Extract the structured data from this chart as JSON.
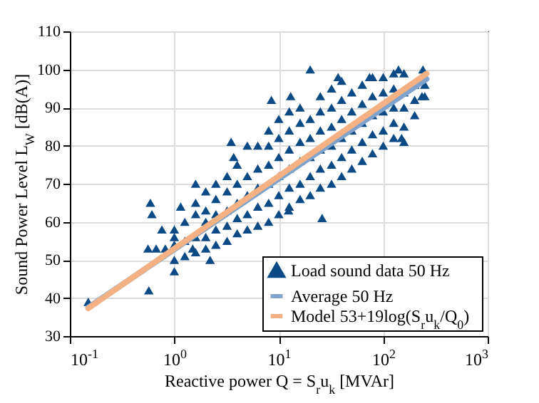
{
  "chart_data": {
    "type": "scatter",
    "xlabel": "Reactive power Q = S$_{r}$u$_{k}$ [MVAr]",
    "ylabel": "Sound Power Level L$_{W}$ [dB(A)]",
    "log": "x",
    "grid": true,
    "legend": "bottom right",
    "xlim": [
      0.1,
      1000
    ],
    "ylim": [
      30,
      110
    ],
    "xticks": [
      {
        "value": 0.1,
        "label": "10$^{-1}$"
      },
      {
        "value": 1,
        "label": "10$^{0}$"
      },
      {
        "value": 10,
        "label": "10$^{1}$"
      },
      {
        "value": 100,
        "label": "10$^{2}$"
      },
      {
        "value": 1000,
        "label": "10$^{3}$"
      }
    ],
    "yticks": [
      30,
      40,
      50,
      60,
      70,
      80,
      90,
      100,
      110
    ],
    "series": [
      {
        "name": "Load sound data 50 Hz",
        "marker": "triangle",
        "color": "#0b4a85",
        "x": [
          0.15,
          0.59,
          0.61,
          0.57,
          0.76,
          0.56,
          0.67,
          0.82,
          1,
          20,
          8.5,
          13,
          3.5,
          3.7,
          26,
          240,
          235,
          150,
          37,
          74,
          140,
          12.4,
          1.5,
          2.2,
          1.15,
          1.6,
          1,
          1,
          1,
          1,
          1.26,
          1.26,
          1.26,
          1.6,
          1.6,
          1.6,
          1.6,
          2,
          2,
          2,
          2,
          2,
          2.5,
          2.5,
          2.5,
          2.5,
          2.5,
          3.2,
          3.2,
          3.2,
          3.2,
          3.2,
          4,
          4,
          4,
          4,
          4,
          5,
          5,
          5,
          5,
          5,
          6.3,
          6.3,
          6.3,
          6.3,
          6.3,
          8,
          8,
          8,
          8,
          8,
          8,
          10,
          10,
          10,
          10,
          10,
          10,
          12.6,
          12.6,
          12.6,
          12.6,
          12.6,
          12.6,
          16,
          16,
          16,
          16,
          16,
          16,
          20,
          20,
          20,
          20,
          20,
          25,
          25,
          25,
          25,
          25,
          25,
          32,
          32,
          32,
          32,
          32,
          32,
          40,
          40,
          40,
          40,
          40,
          40,
          50,
          50,
          50,
          50,
          50,
          63,
          63,
          63,
          63,
          63,
          79,
          79,
          79,
          79,
          79,
          100,
          100,
          100,
          100,
          100,
          126,
          126,
          126,
          126,
          126,
          158,
          158,
          158,
          158,
          158,
          200,
          200,
          200,
          250,
          250
        ],
        "values": [
          39,
          65,
          62,
          42,
          58,
          53,
          53,
          53,
          47,
          100,
          92,
          93,
          81,
          77,
          61,
          100,
          93,
          82,
          98,
          98,
          100,
          63,
          53,
          50,
          64,
          70,
          50,
          54,
          58,
          56,
          51,
          55,
          60,
          52,
          56,
          62,
          65,
          53,
          56,
          60,
          63,
          68,
          54,
          58,
          62,
          66,
          70,
          55,
          59,
          63,
          68,
          72,
          57,
          61,
          65,
          70,
          75,
          58,
          62,
          67,
          72,
          80,
          59,
          64,
          69,
          74,
          80,
          60,
          65,
          70,
          75,
          80,
          84,
          62,
          67,
          72,
          77,
          82,
          87,
          64,
          69,
          74,
          79,
          84,
          89,
          66,
          70,
          76,
          81,
          86,
          90,
          67,
          72,
          77,
          82,
          87,
          69,
          74,
          79,
          84,
          89,
          93,
          70,
          75,
          80,
          85,
          90,
          95,
          72,
          77,
          82,
          87,
          92,
          97,
          74,
          79,
          84,
          89,
          94,
          76,
          81,
          86,
          91,
          96,
          78,
          83,
          88,
          93,
          98,
          80,
          84,
          89,
          94,
          98,
          82,
          86,
          90,
          95,
          99,
          81,
          85,
          90,
          94,
          99,
          88,
          92,
          96,
          93,
          96
        ]
      },
      {
        "name": "Average 50 Hz",
        "type": "line",
        "color": "#7fa3cc",
        "x": [
          0.15,
          260
        ],
        "values": [
          37.5,
          97.5
        ]
      },
      {
        "name": "Model 53+19log(S$_{r}$u$_{k}$/Q$_{0}$)",
        "type": "line",
        "color": "#f4b183",
        "x": [
          0.15,
          260
        ],
        "values": [
          37.3,
          98.9
        ]
      }
    ]
  }
}
